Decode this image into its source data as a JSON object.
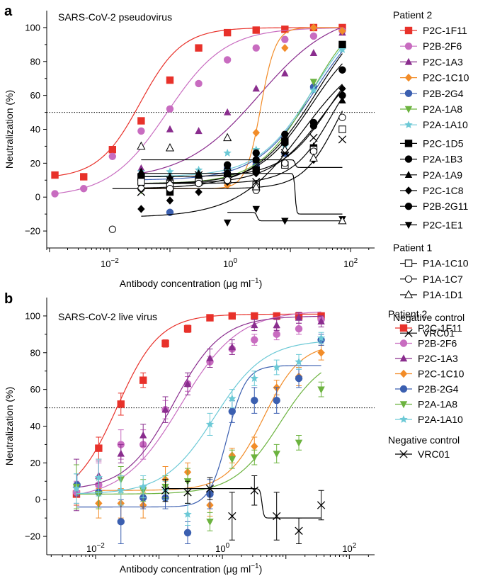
{
  "chart_data": [
    {
      "type": "scatter",
      "panel": "a",
      "title": "SARS-CoV-2 pseudovirus",
      "xlabel_main": "Antibody concentration (μg ml",
      "xlabel_sup": "−1",
      "xlabel_end": ")",
      "ylabel": "Neutralization (%)",
      "x_scale": "log",
      "xlim": [
        0.0009,
        250
      ],
      "ylim": [
        -30,
        110
      ],
      "x_ticks": [
        {
          "v": 0.01,
          "base": "10",
          "exp": "−2"
        },
        {
          "v": 1,
          "base": "10",
          "exp": "0"
        },
        {
          "v": 100,
          "base": "10",
          "exp": "2"
        }
      ],
      "y_ticks": [
        -20,
        0,
        20,
        40,
        60,
        80,
        100
      ],
      "threshold": 50,
      "legend_groups": [
        {
          "title": "Patient 2",
          "items": [
            "P2C-1F11",
            "P2B-2F6",
            "P2C-1A3",
            "P2C-1C10",
            "P2B-2G4",
            "P2A-1A8",
            "P2A-1A10",
            "P2C-1D5",
            "P2A-1B3",
            "P2A-1A9",
            "P2C-1C8",
            "P2B-2G11",
            "P2C-1E1"
          ]
        },
        {
          "title": "Patient 1",
          "items": [
            "P1A-1C10",
            "P1A-1C7",
            "P1A-1D1"
          ]
        },
        {
          "title": "Negative control",
          "items": [
            "VRC01"
          ]
        }
      ],
      "series": [
        {
          "name": "P2C-1F11",
          "color": "#e8312a",
          "marker": "square",
          "x": [
            0.00123,
            0.0037,
            0.0111,
            0.0333,
            0.1,
            0.3,
            0.9,
            2.7,
            8.1,
            24.3,
            72.9
          ],
          "y": [
            13,
            12,
            28,
            45,
            69,
            88,
            97,
            98.5,
            99,
            100,
            100
          ],
          "fit": {
            "bottom": 11,
            "top": 100,
            "ec50": 0.032,
            "hill": 1.25
          }
        },
        {
          "name": "P2B-2F6",
          "color": "#c86cc0",
          "marker": "circle",
          "x": [
            0.00123,
            0.0037,
            0.0111,
            0.0333,
            0.1,
            0.3,
            0.9,
            2.7,
            8.1,
            24.3,
            72.9
          ],
          "y": [
            2,
            5,
            24,
            39,
            52,
            67,
            81,
            88,
            93,
            95,
            98
          ],
          "fit": {
            "bottom": 0,
            "top": 100,
            "ec50": 0.09,
            "hill": 0.9
          }
        },
        {
          "name": "P2C-1A3",
          "color": "#8a2d8e",
          "marker": "triangle-up",
          "x": [
            0.0333,
            0.1,
            0.3,
            0.9,
            2.7,
            8.1,
            24.3,
            72.9
          ],
          "y": [
            17,
            40,
            39,
            50,
            64,
            73,
            85,
            97
          ],
          "fit": {
            "bottom": 10,
            "top": 110,
            "ec50": 3,
            "hill": 0.7
          }
        },
        {
          "name": "P2C-1C10",
          "color": "#f28c28",
          "marker": "diamond",
          "x": [
            0.0333,
            0.1,
            0.3,
            0.9,
            2.7,
            8.1,
            24.3,
            72.9
          ],
          "y": [
            11,
            3,
            9,
            7,
            38,
            88,
            100,
            98
          ],
          "fit": {
            "bottom": 5,
            "top": 100,
            "ec50": 3.2,
            "hill": 3.5
          }
        },
        {
          "name": "P2B-2G4",
          "color": "#3b5fb0",
          "marker": "circle",
          "x": [
            0.0333,
            0.1,
            0.3,
            0.9,
            2.7,
            8.1,
            24.3,
            72.9
          ],
          "y": [
            13,
            -9,
            11,
            17,
            19,
            26,
            65,
            89
          ],
          "fit": {
            "bottom": 10,
            "top": 115,
            "ec50": 25,
            "hill": 0.9
          }
        },
        {
          "name": "P2A-1A8",
          "color": "#6cb33f",
          "marker": "triangle-down",
          "x": [
            0.0333,
            0.1,
            0.3,
            0.9,
            2.7,
            8.1,
            24.3,
            72.9
          ],
          "y": [
            4,
            7,
            12,
            17,
            27,
            31,
            68,
            88
          ],
          "fit": {
            "bottom": 8,
            "top": 115,
            "ec50": 22,
            "hill": 1
          }
        },
        {
          "name": "P2A-1A10",
          "color": "#6cc9d6",
          "marker": "star",
          "x": [
            0.0333,
            0.1,
            0.3,
            0.9,
            2.7,
            8.1,
            24.3,
            72.9
          ],
          "y": [
            15,
            15,
            16,
            26,
            28,
            30,
            63,
            87
          ],
          "fit": {
            "bottom": 12,
            "top": 115,
            "ec50": 24,
            "hill": 0.95
          }
        },
        {
          "name": "P2C-1D5",
          "color": "#000000",
          "marker": "square",
          "x": [
            0.0333,
            0.1,
            0.3,
            0.9,
            2.7,
            8.1,
            24.3,
            72.9
          ],
          "y": [
            12,
            3,
            9,
            12,
            16,
            33,
            29,
            90
          ],
          "fit": {
            "bottom": 5,
            "top": 120,
            "ec50": 28,
            "hill": 0.85
          }
        },
        {
          "name": "P2A-1B3",
          "color": "#000000",
          "marker": "circle",
          "x": [
            0.0333,
            0.1,
            0.3,
            0.9,
            2.7,
            8.1,
            24.3,
            72.9
          ],
          "y": [
            8,
            7,
            12,
            19,
            26,
            37,
            42,
            75
          ],
          "fit": {
            "bottom": 8,
            "top": 100,
            "ec50": 22,
            "hill": 1
          }
        },
        {
          "name": "P2A-1A9",
          "color": "#000000",
          "marker": "triangle-up",
          "x": [
            0.0333,
            0.1,
            0.3,
            0.9,
            2.7,
            8.1,
            24.3,
            72.9
          ],
          "y": [
            15,
            12,
            14,
            18,
            22,
            27,
            30,
            57
          ],
          "fit": {
            "bottom": 12,
            "top": 95,
            "ec50": 45,
            "hill": 1.1
          }
        },
        {
          "name": "P2C-1C8",
          "color": "#000000",
          "marker": "diamond",
          "x": [
            0.0333,
            0.1,
            0.3,
            0.9,
            2.7,
            8.1,
            24.3,
            72.9
          ],
          "y": [
            -7,
            -2,
            3,
            9,
            14,
            20,
            22,
            64
          ],
          "fit": {
            "bottom": -12,
            "top": 90,
            "ec50": 16,
            "hill": 0.8
          }
        },
        {
          "name": "P2B-2G11",
          "color": "#000000",
          "marker": "circle",
          "x": [
            0.0333,
            0.1,
            0.3,
            0.9,
            2.7,
            8.1,
            24.3,
            72.9
          ],
          "y": [
            10,
            6,
            10,
            14,
            22,
            32,
            44,
            60
          ],
          "fit": {
            "bottom": 8,
            "top": 90,
            "ec50": 36,
            "hill": 1
          }
        },
        {
          "name": "P2C-1E1",
          "color": "#000000",
          "marker": "triangle-down",
          "x": [
            0.9,
            2.7,
            8.1,
            72.9
          ],
          "y": [
            -15,
            -7,
            -14,
            -13
          ],
          "fit": {
            "bottom": -9,
            "top": -14,
            "ec50": 2.8,
            "hill": 30
          }
        },
        {
          "name": "P1A-1C10",
          "color": "#000000",
          "marker": "square-open",
          "x": [
            0.0333,
            0.1,
            0.3,
            0.9,
            2.7,
            8.1,
            24.3,
            72.9
          ],
          "y": [
            9,
            8,
            9,
            10,
            7,
            19,
            28,
            40
          ],
          "fit": {
            "bottom": 8,
            "top": 90,
            "ec50": 50,
            "hill": 1.3
          }
        },
        {
          "name": "P1A-1C7",
          "color": "#000000",
          "marker": "circle-open",
          "x": [
            0.0111,
            0.0333,
            0.1,
            0.3,
            0.9,
            2.7,
            8.1,
            24.3,
            72.9
          ],
          "y": [
            -19,
            5,
            5,
            8,
            10,
            4,
            20,
            27,
            47
          ],
          "fit": {
            "bottom": 5,
            "top": 85,
            "ec50": 60,
            "hill": 1.5
          }
        },
        {
          "name": "P1A-1D1",
          "color": "#000000",
          "marker": "triangle-open",
          "x": [
            0.0333,
            0.1,
            0.9,
            2.7,
            8.1,
            24.3,
            72.9
          ],
          "y": [
            30,
            29,
            35,
            6,
            28,
            23,
            -14
          ],
          "fit": {
            "bottom": 22,
            "top": 17.5,
            "ec50": 12,
            "hill": 40
          }
        },
        {
          "name": "VRC01",
          "color": "#000000",
          "marker": "x",
          "x": [
            0.0333,
            0.1,
            0.3,
            0.9,
            2.7,
            8.1,
            24.3,
            72.9
          ],
          "y": [
            3,
            10,
            13,
            14,
            9,
            26,
            35,
            34
          ],
          "fit": {
            "bottom": 14,
            "top": -10,
            "ec50": 12,
            "hill": 40
          }
        }
      ]
    },
    {
      "type": "scatter",
      "panel": "b",
      "title": "SARS-CoV-2 live virus",
      "xlabel_main": "Antibody concentration (μg ml",
      "xlabel_sup": "−1",
      "xlabel_end": ")",
      "ylabel": "Neutralization (%)",
      "x_scale": "log",
      "xlim": [
        0.0017,
        250
      ],
      "ylim": [
        -30,
        110
      ],
      "x_ticks": [
        {
          "v": 0.01,
          "base": "10",
          "exp": "−2"
        },
        {
          "v": 1,
          "base": "10",
          "exp": "0"
        },
        {
          "v": 100,
          "base": "10",
          "exp": "2"
        }
      ],
      "y_ticks": [
        -20,
        0,
        20,
        40,
        60,
        80,
        100
      ],
      "threshold": 50,
      "legend_groups": [
        {
          "title": "Patient 2",
          "items": [
            "P2C-1F11",
            "P2B-2F6",
            "P2C-1A3",
            "P2C-1C10",
            "P2B-2G4",
            "P2A-1A8",
            "P2A-1A10"
          ]
        },
        {
          "title": "Negative control",
          "items": [
            "VRC01"
          ]
        }
      ],
      "series": [
        {
          "name": "P2C-1F11",
          "color": "#e8312a",
          "marker": "square",
          "x": [
            0.005,
            0.0112,
            0.0251,
            0.0563,
            0.126,
            0.283,
            0.635,
            1.42,
            3.19,
            7.15,
            16,
            36
          ],
          "y": [
            3,
            28,
            52,
            65,
            85,
            93,
            99,
            100,
            100,
            100,
            100,
            100
          ],
          "err": [
            6,
            6,
            6,
            4,
            2,
            2,
            1,
            1,
            1,
            1,
            1,
            1
          ],
          "fit": {
            "bottom": 0,
            "top": 101,
            "ec50": 0.022,
            "hill": 1.3
          }
        },
        {
          "name": "P2B-2F6",
          "color": "#c86cc0",
          "marker": "circle",
          "x": [
            0.005,
            0.0112,
            0.0251,
            0.0563,
            0.126,
            0.283,
            0.635,
            1.42,
            3.19,
            7.15,
            16,
            36
          ],
          "y": [
            4,
            8,
            30,
            30,
            49,
            63,
            75,
            82,
            87,
            90,
            93,
            98
          ],
          "err": [
            6,
            12,
            8,
            8,
            5,
            4,
            3,
            3,
            3,
            3,
            3,
            2
          ],
          "fit": {
            "bottom": 0,
            "top": 103,
            "ec50": 0.22,
            "hill": 0.95
          }
        },
        {
          "name": "P2C-1A3",
          "color": "#8a2d8e",
          "marker": "triangle-up",
          "x": [
            0.005,
            0.0112,
            0.0251,
            0.0563,
            0.126,
            0.283,
            0.635,
            1.42,
            3.19,
            7.15,
            16,
            36
          ],
          "y": [
            8,
            13,
            25,
            35,
            49,
            63,
            77,
            83,
            95,
            95,
            99,
            97
          ],
          "err": [
            14,
            8,
            5,
            6,
            7,
            6,
            5,
            4,
            3,
            3,
            3,
            3
          ],
          "fit": {
            "bottom": 5,
            "top": 100,
            "ec50": 0.17,
            "hill": 1.15
          }
        },
        {
          "name": "P2C-1C10",
          "color": "#f28c28",
          "marker": "diamond",
          "x": [
            0.0112,
            0.0251,
            0.0563,
            0.126,
            0.283,
            0.635,
            1.42,
            3.19,
            7.15,
            16,
            36
          ],
          "y": [
            -2,
            -2,
            -3,
            11,
            15,
            -3,
            24,
            29,
            61,
            67,
            80
          ],
          "err": [
            8,
            8,
            7,
            7,
            5,
            6,
            4,
            5,
            4,
            5,
            4
          ],
          "fit": {
            "bottom": 5,
            "top": 85,
            "ec50": 4.5,
            "hill": 1.5
          }
        },
        {
          "name": "P2B-2G4",
          "color": "#3b5fb0",
          "marker": "circle",
          "x": [
            0.0051,
            0.0112,
            0.0251,
            0.0563,
            0.126,
            0.283,
            0.635,
            1.42,
            3.19,
            7.15,
            16,
            36
          ],
          "y": [
            8,
            4,
            -12,
            1,
            1,
            -18,
            3,
            48,
            54,
            54,
            66,
            87
          ],
          "err": [
            6,
            8,
            12,
            6,
            6,
            6,
            8,
            6,
            7,
            7,
            5,
            3
          ],
          "fit": {
            "bottom": -4,
            "top": 73,
            "ec50": 1.2,
            "hill": 3
          }
        },
        {
          "name": "P2A-1A8",
          "color": "#6cb33f",
          "marker": "triangle-down",
          "x": [
            0.005,
            0.0112,
            0.0251,
            0.0563,
            0.126,
            0.283,
            0.635,
            1.42,
            3.19,
            7.15,
            16,
            36
          ],
          "y": [
            7,
            3,
            11,
            5,
            7,
            10,
            -12,
            22,
            23,
            25,
            31,
            60
          ],
          "err": [
            12,
            8,
            7,
            6,
            6,
            7,
            5,
            5,
            4,
            5,
            4,
            4
          ],
          "fit": {
            "bottom": 3,
            "top": 80,
            "ec50": 8,
            "hill": 1.2
          }
        },
        {
          "name": "P2A-1A10",
          "color": "#6cc9d6",
          "marker": "star",
          "x": [
            0.005,
            0.0112,
            0.0251,
            0.0563,
            0.126,
            0.283,
            0.635,
            1.42,
            3.19,
            7.15,
            16,
            36
          ],
          "y": [
            6,
            12,
            5,
            7,
            5,
            -8,
            41,
            55,
            66,
            72,
            75,
            88
          ],
          "err": [
            8,
            10,
            8,
            6,
            5,
            6,
            6,
            5,
            4,
            4,
            4,
            3
          ],
          "fit": {
            "bottom": 3,
            "top": 87,
            "ec50": 0.75,
            "hill": 1.1
          }
        },
        {
          "name": "VRC01",
          "color": "#000000",
          "marker": "x",
          "x": [
            0.126,
            0.283,
            0.635,
            1.42,
            3.19,
            7.15,
            16,
            36
          ],
          "y": [
            5,
            4,
            6,
            -9,
            5,
            -9,
            -17,
            -3
          ],
          "err": [
            6,
            6,
            6,
            13,
            8,
            13,
            7,
            8
          ],
          "fit": {
            "bottom": 6,
            "top": -10,
            "ec50": 4.2,
            "hill": 30
          }
        }
      ]
    }
  ]
}
